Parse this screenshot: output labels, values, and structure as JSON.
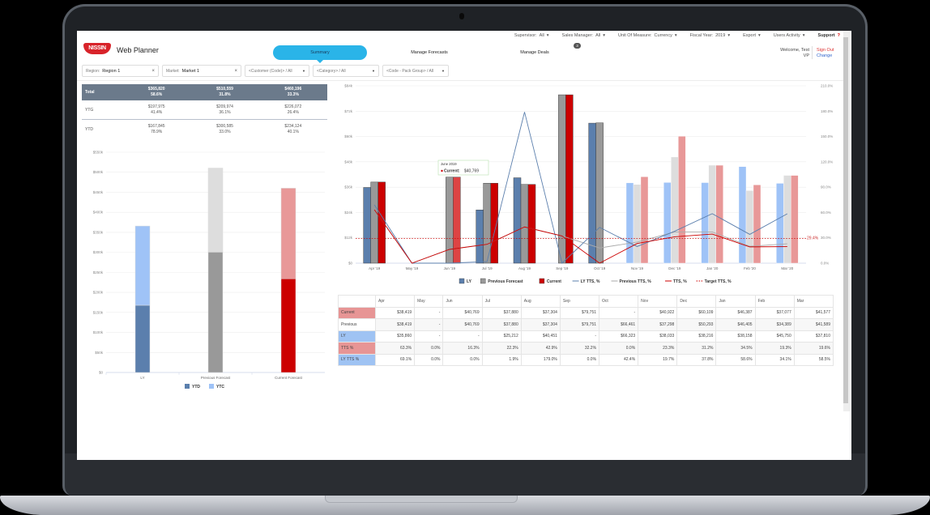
{
  "app": {
    "title": "Web Planner",
    "logo_text": "NISSIN"
  },
  "topbar": {
    "supervisor": {
      "label": "Supervisor:",
      "value": "All"
    },
    "sales_manager": {
      "label": "Sales Manager:",
      "value": "All"
    },
    "unit_of_measure": {
      "label": "Unit Of Measure:",
      "value": "Currency"
    },
    "fiscal_year": {
      "label": "Fiscal Year:",
      "value": "2019"
    },
    "export": "Export",
    "users_activity": "Users Activity",
    "support": "Support",
    "support_icon": "?"
  },
  "nav": {
    "tabs": [
      {
        "label": "Summary",
        "active": true
      },
      {
        "label": "Manage Forecasts",
        "active": false
      },
      {
        "label": "Manage Deals",
        "active": false
      }
    ],
    "deals_badge": "3"
  },
  "user": {
    "welcome": "Welcome,",
    "name": "Test",
    "role": "VP",
    "sign_out": "Sign Out",
    "change": "Change"
  },
  "filters": [
    {
      "label": "Region:",
      "value": "Region 1",
      "clear": "×"
    },
    {
      "label": "Market:",
      "value": "Market 1",
      "clear": "×"
    },
    {
      "placeholder": "<Customer (Code)> / All"
    },
    {
      "placeholder": "<Category> / All"
    },
    {
      "placeholder": "<Code - Pack Group> / All"
    }
  ],
  "summary_table": {
    "rows": [
      {
        "label": "Total",
        "cells": [
          [
            "$365,820",
            "58.6%"
          ],
          [
            "$510,559",
            "31.8%"
          ],
          [
            "$460,196",
            "33.3%"
          ]
        ]
      },
      {
        "label": "YTG",
        "cells": [
          [
            "$197,975",
            "41.4%"
          ],
          [
            "$209,974",
            "36.1%"
          ],
          [
            "$226,072",
            "26.4%"
          ]
        ]
      },
      {
        "label": "YTD",
        "cells": [
          [
            "$167,845",
            "78.9%"
          ],
          [
            "$300,585",
            "33.0%"
          ],
          [
            "$234,124",
            "40.1%"
          ]
        ]
      }
    ]
  },
  "chart_data": [
    {
      "type": "bar",
      "title": "",
      "stacked": true,
      "categories": [
        "LY",
        "Previous Forecast",
        "Current Forecast"
      ],
      "series": [
        {
          "name": "YTD",
          "values": [
            167845,
            300585,
            234124
          ],
          "colors": [
            "#5b7fad",
            "#999999",
            "#cc0000"
          ]
        },
        {
          "name": "YTC",
          "values": [
            197975,
            209974,
            226072
          ],
          "colors": [
            "#9fc3f7",
            "#dddddd",
            "#e89898"
          ]
        }
      ],
      "yticks": [
        "$0",
        "$50k",
        "$100k",
        "$150k",
        "$200k",
        "$250k",
        "$300k",
        "$350k",
        "$400k",
        "$450k",
        "$500k",
        "$550k"
      ],
      "ylim": [
        0,
        550000
      ],
      "grid": true,
      "legend": [
        "YTD",
        "YTC"
      ],
      "legend_position": "bottom"
    },
    {
      "type": "bar",
      "title": "",
      "categories": [
        "Apr '19",
        "May '19",
        "Jun '19",
        "Jul '19",
        "Aug '19",
        "Sep '19",
        "Oct '19",
        "Nov '19",
        "Dec '19",
        "Jan '20",
        "Feb '20",
        "Mar '20"
      ],
      "series": [
        {
          "name": "LY",
          "type": "bar",
          "values": [
            35860,
            0,
            0,
            25212,
            40451,
            0,
            66323,
            38033,
            38216,
            38158,
            45750,
            37810
          ]
        },
        {
          "name": "Previous Forecast",
          "type": "bar",
          "values": [
            38419,
            0,
            40769,
            37880,
            37304,
            79751,
            66461,
            37298,
            50293,
            46405,
            34389,
            41589
          ]
        },
        {
          "name": "Current",
          "type": "bar",
          "values": [
            38419,
            0,
            40769,
            37880,
            37304,
            79751,
            0,
            40922,
            60109,
            46387,
            37077,
            41577
          ]
        },
        {
          "name": "LY TTS, %",
          "type": "line",
          "axis": "right",
          "values": [
            69.1,
            0.0,
            0.0,
            1.9,
            179.0,
            0.0,
            42.4,
            19.7,
            37.8,
            58.6,
            34.1,
            58.5
          ]
        },
        {
          "name": "Previous TTS, %",
          "type": "line",
          "axis": "right",
          "values": [
            63.3,
            0.0,
            16.3,
            22.3,
            42.9,
            32.2,
            18.0,
            25.0,
            37.0,
            37.0,
            20.0,
            23.0
          ]
        },
        {
          "name": "TTS, %",
          "type": "line",
          "axis": "right",
          "values": [
            63.3,
            0.0,
            16.3,
            22.3,
            42.9,
            32.2,
            0.0,
            23.3,
            31.2,
            34.5,
            19.3,
            19.6
          ]
        },
        {
          "name": "Target TTS, %",
          "type": "line",
          "axis": "right",
          "dashed": true,
          "values": [
            29.4,
            29.4,
            29.4,
            29.4,
            29.4,
            29.4,
            29.4,
            29.4,
            29.4,
            29.4,
            29.4,
            29.4
          ]
        }
      ],
      "yticks_left": [
        "$0",
        "$12k",
        "$24k",
        "$36k",
        "$48k",
        "$60k",
        "$72k",
        "$84k"
      ],
      "ylim_left": [
        0,
        84000
      ],
      "yticks_right": [
        "0.0%",
        "30.0%",
        "60.0%",
        "90.0%",
        "120.0%",
        "150.0%",
        "180.0%",
        "210.0%"
      ],
      "ylim_right": [
        0,
        210
      ],
      "annotation": "29.4%",
      "tooltip": {
        "title": "June 2019",
        "series": "Current:",
        "value": "$40,769"
      },
      "legend": [
        "LY",
        "Previous Forecast",
        "Current",
        "LY TTS, %",
        "Previous TTS, %",
        "TTS, %",
        "Target TTS, %"
      ],
      "legend_position": "bottom",
      "grid": true
    }
  ],
  "data_table": {
    "columns": [
      "",
      "Apr",
      "May",
      "Jun",
      "Jul",
      "Aug",
      "Sep",
      "Oct",
      "Nov",
      "Dec",
      "Jan",
      "Feb",
      "Mar"
    ],
    "rows": [
      {
        "label": "Current",
        "style": "red",
        "values": [
          "$38,419",
          "-",
          "$40,769",
          "$37,880",
          "$37,304",
          "$79,751",
          "-",
          "$40,922",
          "$60,109",
          "$46,387",
          "$37,077",
          "$41,577"
        ]
      },
      {
        "label": "Previous",
        "style": "plain",
        "values": [
          "$38,419",
          "-",
          "$40,769",
          "$37,880",
          "$37,304",
          "$79,751",
          "$66,461",
          "$37,298",
          "$50,293",
          "$46,405",
          "$34,389",
          "$41,589"
        ]
      },
      {
        "label": "LY",
        "style": "blue",
        "values": [
          "$35,860",
          "-",
          "-",
          "$25,212",
          "$40,451",
          "-",
          "$66,323",
          "$38,033",
          "$38,216",
          "$38,158",
          "$45,750",
          "$37,810"
        ]
      },
      {
        "label": "TTS %",
        "style": "red",
        "values": [
          "63.3%",
          "0.0%",
          "16.3%",
          "22.3%",
          "42.9%",
          "32.2%",
          "0.0%",
          "23.3%",
          "31.2%",
          "34.5%",
          "19.3%",
          "19.6%"
        ]
      },
      {
        "label": "LY TTS %",
        "style": "blue",
        "values": [
          "69.1%",
          "0.0%",
          "0.0%",
          "1.9%",
          "179.0%",
          "0.0%",
          "42.4%",
          "19.7%",
          "37.8%",
          "58.6%",
          "34.1%",
          "58.5%"
        ]
      }
    ]
  },
  "colors": {
    "accent": "#2ab4e8",
    "brand_red": "#d8232a",
    "ly": "#5b7fad",
    "ly_light": "#9fc3f7",
    "previous": "#999999",
    "previous_light": "#dddddd",
    "current": "#cc0000",
    "current_light": "#e89898",
    "summary_header": "#6b7a8b"
  }
}
